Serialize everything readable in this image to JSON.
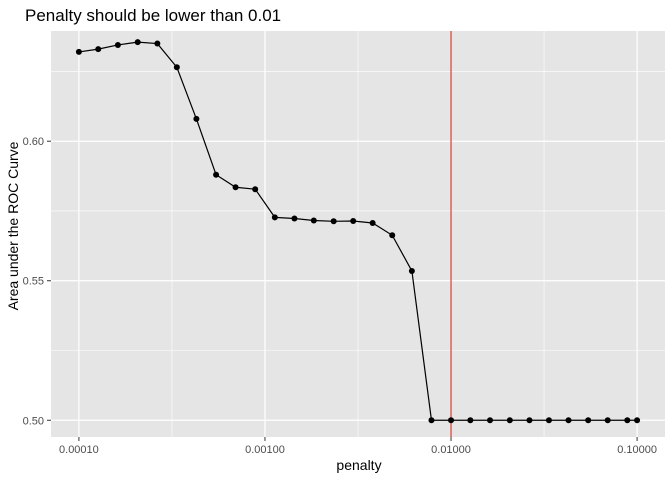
{
  "chart_data": {
    "type": "line",
    "title": "Penalty should be lower than 0.01",
    "xlabel": "penalty",
    "ylabel": "Area under the ROC Curve",
    "x_scale": "log10",
    "xlim": [
      8.38e-05,
      0.000119
    ],
    "ylim": [
      0.494,
      0.6395
    ],
    "x_ticks": [
      0.0001,
      0.001,
      0.01,
      0.1
    ],
    "x_tick_labels": [
      "0.00010",
      "0.00100",
      "0.01000",
      "0.10000"
    ],
    "y_ticks": [
      0.5,
      0.55,
      0.6
    ],
    "y_tick_labels": [
      "0.50",
      "0.55",
      "0.60"
    ],
    "grid": true,
    "reference_line": {
      "x": 0.01,
      "color": "#d62d20"
    },
    "series": [
      {
        "color": "#000000",
        "x": [
          0.0001,
          0.000127,
          0.000162,
          0.000207,
          0.000264,
          0.000336,
          0.000428,
          0.000546,
          0.000695,
          0.000886,
          0.00113,
          0.00144,
          0.00183,
          0.00234,
          0.00298,
          0.00379,
          0.00483,
          0.00616,
          0.00785,
          0.01,
          0.0127,
          0.0162,
          0.0207,
          0.0264,
          0.0336,
          0.0428,
          0.0546,
          0.0695,
          0.0886,
          0.1
        ],
        "y": [
          0.632,
          0.633,
          0.6345,
          0.6355,
          0.635,
          0.6265,
          0.608,
          0.588,
          0.5835,
          0.5828,
          0.5727,
          0.5723,
          0.5716,
          0.5713,
          0.5714,
          0.5707,
          0.5663,
          0.5535,
          0.5,
          0.5,
          0.5,
          0.5,
          0.5,
          0.5,
          0.5,
          0.5,
          0.5,
          0.5,
          0.5,
          0.5
        ]
      }
    ]
  },
  "colors": {
    "panel_bg": "#e5e5e5",
    "grid": "#ffffff",
    "line": "#000000",
    "vline": "#d62d20"
  }
}
